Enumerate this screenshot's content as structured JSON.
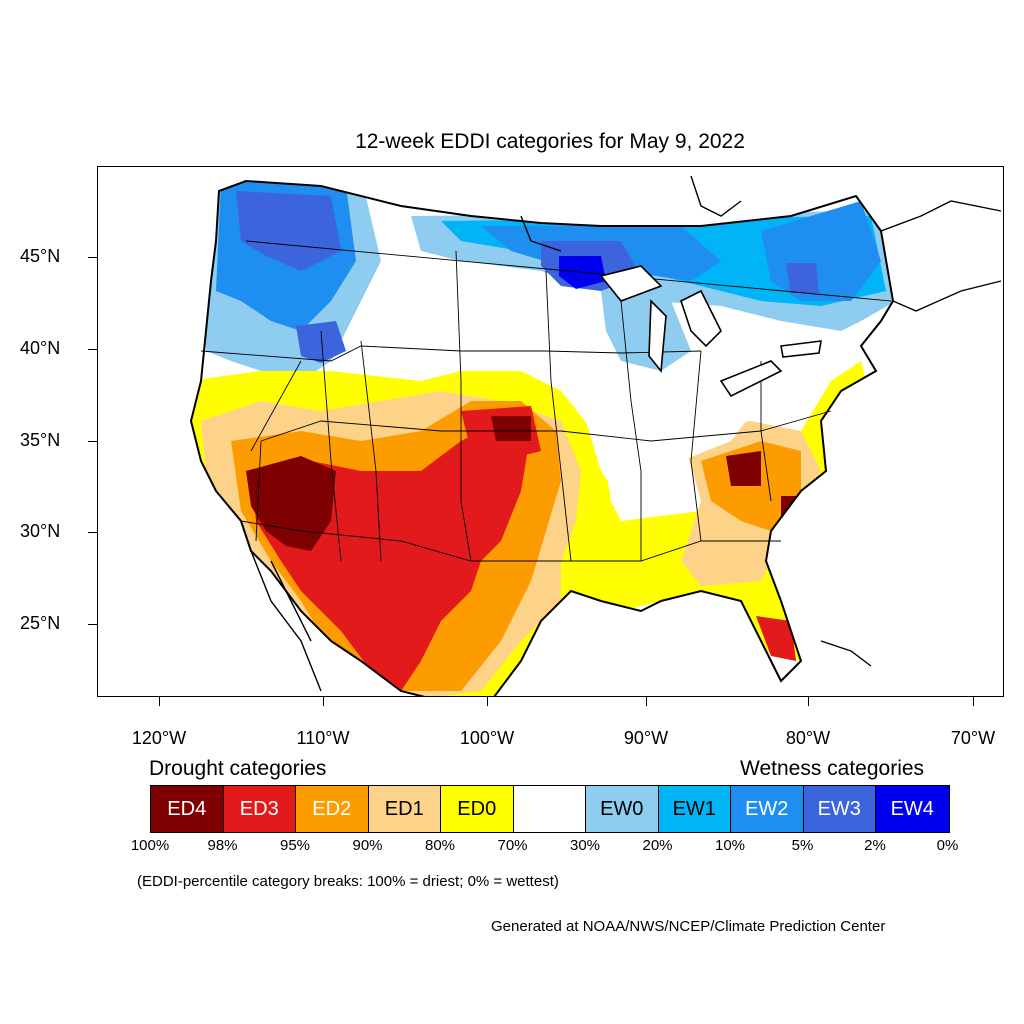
{
  "title": "12-week EDDI categories for May 9, 2022",
  "latitude_labels": [
    "45°N",
    "40°N",
    "35°N",
    "30°N",
    "25°N"
  ],
  "longitude_labels": [
    "120°W",
    "110°W",
    "100°W",
    "90°W",
    "80°W",
    "70°W"
  ],
  "legend": {
    "drought_heading": "Drought categories",
    "wetness_heading": "Wetness categories",
    "categories": [
      {
        "label": "ED4",
        "color": "#7f0000",
        "text_color": "#ffffff"
      },
      {
        "label": "ED3",
        "color": "#e31a1c",
        "text_color": "#ffffff"
      },
      {
        "label": "ED2",
        "color": "#fd9c00",
        "text_color": "#ffffff"
      },
      {
        "label": "ED1",
        "color": "#fdd38a",
        "text_color": "#000000"
      },
      {
        "label": "ED0",
        "color": "#ffff00",
        "text_color": "#000000"
      },
      {
        "label": "",
        "color": "#ffffff",
        "text_color": "#000000"
      },
      {
        "label": "EW0",
        "color": "#8ecdf0",
        "text_color": "#000000"
      },
      {
        "label": "EW1",
        "color": "#00b4f5",
        "text_color": "#000000"
      },
      {
        "label": "EW2",
        "color": "#1e8ff0",
        "text_color": "#ffffff"
      },
      {
        "label": "EW3",
        "color": "#3c64dc",
        "text_color": "#ffffff"
      },
      {
        "label": "EW4",
        "color": "#0000f0",
        "text_color": "#ffffff"
      }
    ],
    "percent_breaks": [
      "100%",
      "98%",
      "95%",
      "90%",
      "80%",
      "70%",
      "30%",
      "20%",
      "10%",
      "5%",
      "2%",
      "0%"
    ]
  },
  "note": "(EDDI-percentile category breaks: 100% = driest; 0% = wettest)",
  "credit": "Generated at NOAA/NWS/NCEP/Climate Prediction Center"
}
